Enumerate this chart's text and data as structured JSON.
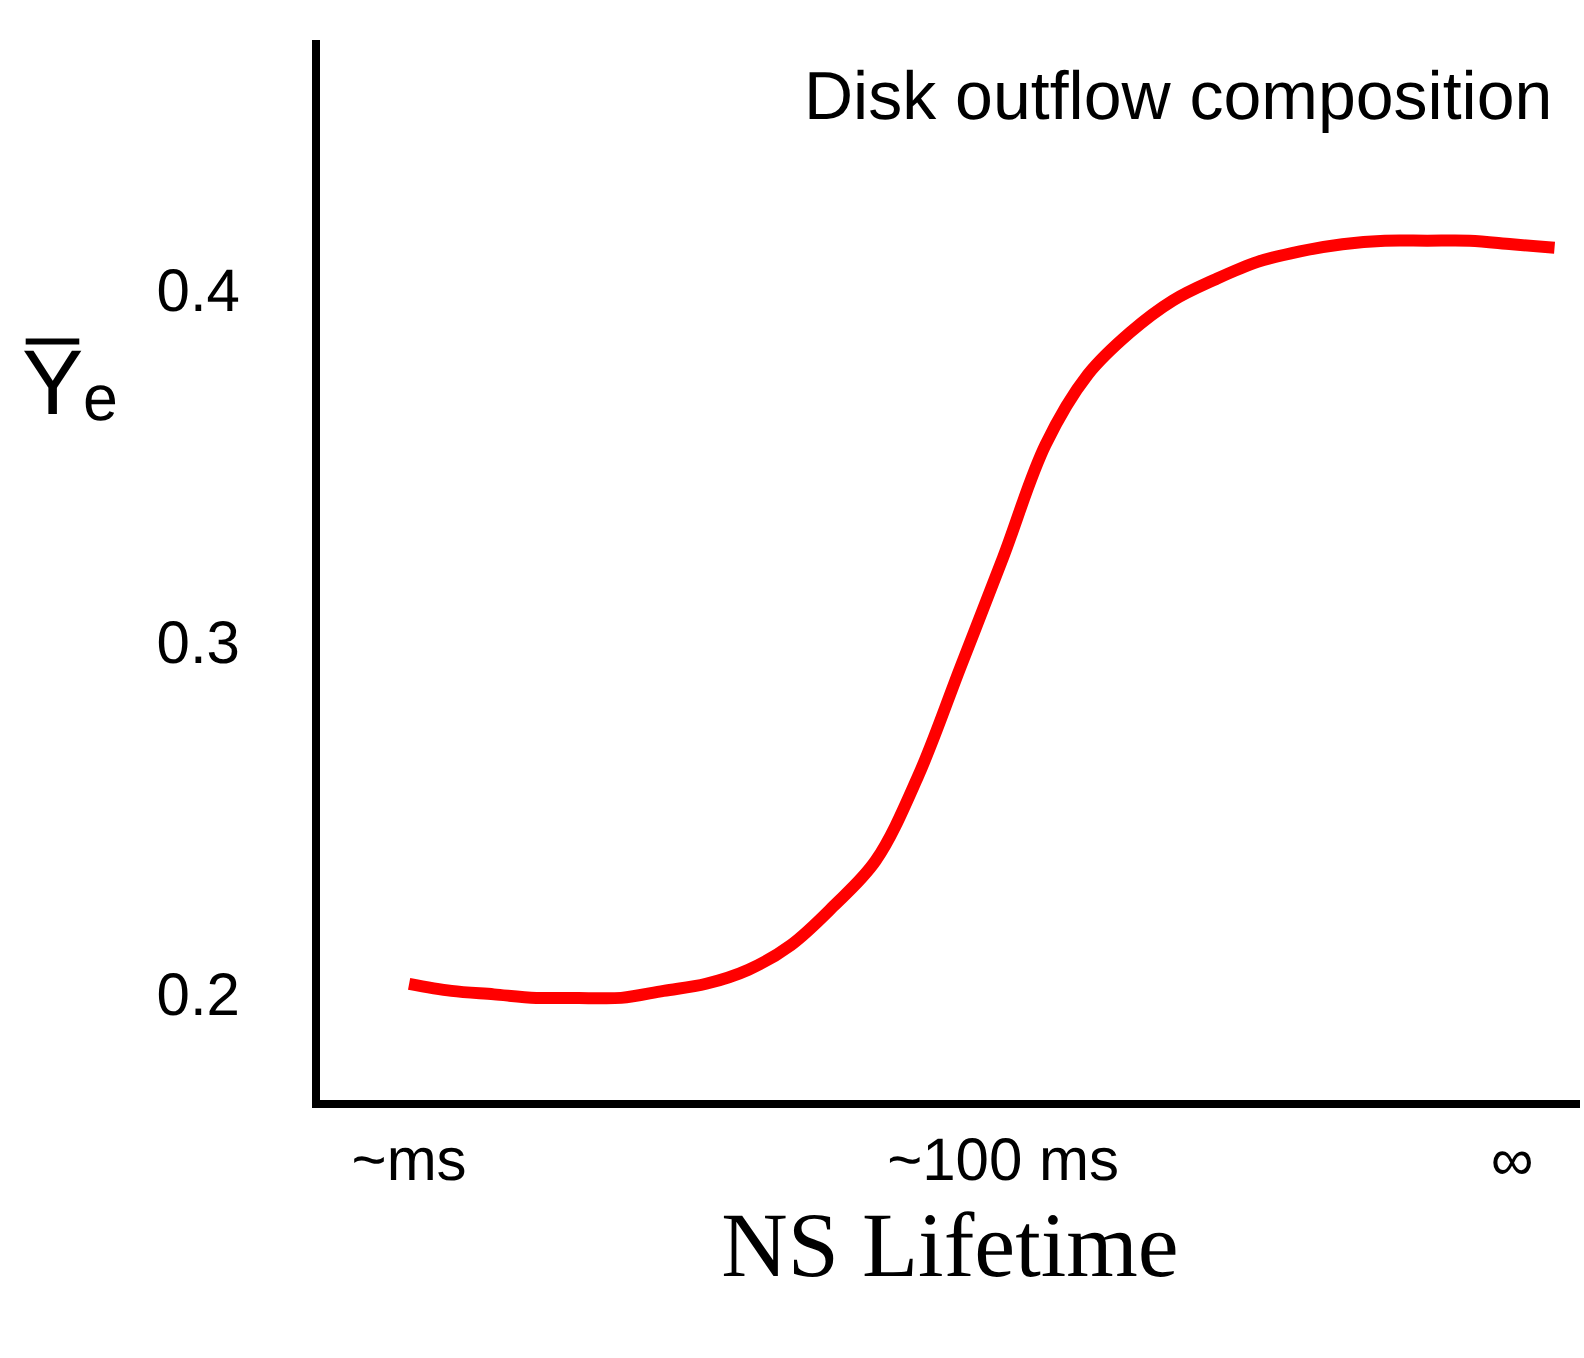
{
  "chart_data": {
    "type": "line",
    "title": "Disk outflow composition",
    "xlabel": "NS Lifetime",
    "ylabel": "Y̅ₑ",
    "categories": [
      "~ms",
      null,
      null,
      null,
      null,
      null,
      null,
      null,
      null,
      null,
      null,
      null,
      null,
      null,
      "~100 ms",
      null,
      null,
      null,
      null,
      null,
      null,
      null,
      null,
      null,
      null,
      null,
      "∞",
      null
    ],
    "series": [
      {
        "color": "#ff0000",
        "values": [
          0.203,
          0.201,
          0.2,
          0.199,
          0.199,
          0.199,
          0.201,
          0.203,
          0.207,
          0.214,
          0.225,
          0.238,
          0.262,
          0.293,
          0.324,
          0.356,
          0.376,
          0.388,
          0.397,
          0.403,
          0.408,
          0.411,
          0.413,
          0.414,
          0.414,
          0.414,
          0.413,
          0.412
        ]
      }
    ],
    "ylim": [
      0.17,
      0.471
    ],
    "yticks": [
      0.2,
      0.3,
      0.4
    ],
    "marker": "none",
    "line_style": "solid"
  }
}
